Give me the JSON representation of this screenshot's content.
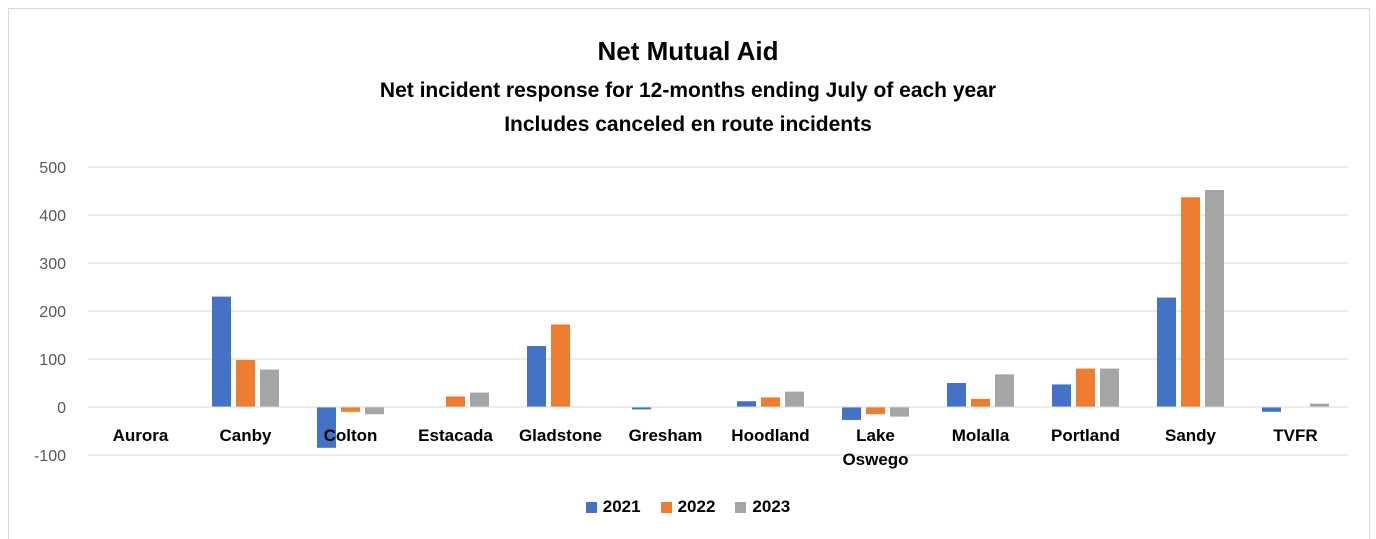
{
  "chart_data": {
    "type": "bar",
    "title": "Net Mutual Aid",
    "subtitle": "Net incident response for 12-months ending July of each year",
    "subtitle2": "Includes canceled en route incidents",
    "categories": [
      "Aurora",
      "Canby",
      "Colton",
      "Estacada",
      "Gladstone",
      "Gresham",
      "Hoodland",
      "Lake Oswego",
      "Molalla",
      "Portland",
      "Sandy",
      "TVFR"
    ],
    "series": [
      {
        "name": "2021",
        "color": "#4472C4",
        "values": [
          0,
          230,
          -85,
          0,
          127,
          -5,
          12,
          -27,
          50,
          47,
          228,
          -10
        ]
      },
      {
        "name": "2022",
        "color": "#ED7D31",
        "values": [
          0,
          98,
          -10,
          22,
          172,
          0,
          20,
          -15,
          17,
          80,
          437,
          0
        ]
      },
      {
        "name": "2023",
        "color": "#A5A5A5",
        "values": [
          0,
          78,
          -15,
          30,
          0,
          0,
          32,
          -20,
          68,
          80,
          452,
          7
        ]
      }
    ],
    "yticks": [
      -100,
      0,
      100,
      200,
      300,
      400,
      500
    ],
    "ylim": [
      -100,
      500
    ],
    "grid": true,
    "legend_position": "bottom"
  }
}
